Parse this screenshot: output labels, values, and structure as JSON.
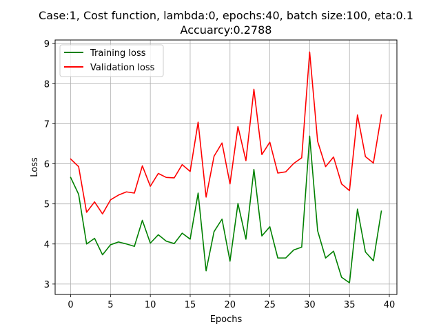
{
  "chart_data": {
    "type": "line",
    "title": "Case:1, Cost function, lambda:0, epochs:40, batch size:100, eta:0.1",
    "subtitle": "Accuarcy:0.2788",
    "xlabel": "Epochs",
    "ylabel": "Loss",
    "xlim": [
      -1.95,
      40.95
    ],
    "ylim": [
      2.74,
      9.09
    ],
    "xticks": [
      0,
      5,
      10,
      15,
      20,
      25,
      30,
      35,
      40
    ],
    "yticks": [
      3,
      4,
      5,
      6,
      7,
      8,
      9
    ],
    "grid": true,
    "legend_position": "top-left",
    "x": [
      0,
      1,
      2,
      3,
      4,
      5,
      6,
      7,
      8,
      9,
      10,
      11,
      12,
      13,
      14,
      15,
      16,
      17,
      18,
      19,
      20,
      21,
      22,
      23,
      24,
      25,
      26,
      27,
      28,
      29,
      30,
      31,
      32,
      33,
      34,
      35,
      36,
      37,
      38,
      39
    ],
    "series": [
      {
        "name": "Training loss",
        "color": "#008000",
        "values": [
          5.66,
          5.24,
          4.0,
          4.14,
          3.73,
          3.98,
          4.05,
          4.0,
          3.94,
          4.59,
          4.02,
          4.23,
          4.07,
          4.01,
          4.27,
          4.12,
          5.27,
          3.33,
          4.31,
          4.62,
          3.57,
          5.01,
          4.12,
          5.86,
          4.2,
          4.43,
          3.65,
          3.65,
          3.85,
          3.92,
          6.69,
          4.33,
          3.65,
          3.82,
          3.17,
          3.03,
          4.87,
          3.8,
          3.58,
          4.82
        ]
      },
      {
        "name": "Validation loss",
        "color": "#ff0000",
        "values": [
          6.12,
          5.93,
          4.79,
          5.05,
          4.75,
          5.1,
          5.22,
          5.3,
          5.27,
          5.95,
          5.44,
          5.76,
          5.66,
          5.65,
          5.98,
          5.81,
          7.04,
          5.17,
          6.19,
          6.52,
          5.5,
          6.93,
          6.08,
          7.86,
          6.23,
          6.54,
          5.77,
          5.8,
          6.01,
          6.15,
          8.79,
          6.56,
          5.93,
          6.17,
          5.5,
          5.33,
          7.22,
          6.18,
          6.02,
          7.22
        ]
      }
    ]
  }
}
